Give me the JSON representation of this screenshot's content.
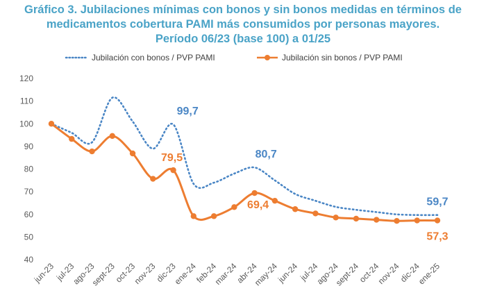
{
  "title_lines": [
    "Gráfico 3. Jubilaciones mínimas con bonos y sin bonos medidas en términos de",
    "medicamentos cobertura PAMI más consumidos por personas mayores.",
    "Período 06/23 (base 100) a 01/25"
  ],
  "chart_data": {
    "type": "line",
    "categories": [
      "jun-23",
      "jul-23",
      "ago-23",
      "sept-23",
      "oct-23",
      "nov-23",
      "dic-23",
      "ene-24",
      "feb-24",
      "mar-24",
      "abr-24",
      "may-24",
      "jun-24",
      "jul-24",
      "ago-24",
      "sept-24",
      "oct-24",
      "nov-24",
      "dic-24",
      "ene-25"
    ],
    "ylim": [
      40,
      120
    ],
    "yticks": [
      40,
      50,
      60,
      70,
      80,
      90,
      100,
      110,
      120
    ],
    "grid": false,
    "legend_position": "top",
    "series": [
      {
        "name": "Jubilación con bonos / PVP PAMI",
        "color": "#4a86c5",
        "style": "dotted",
        "values": [
          100,
          96,
          91.8,
          111.5,
          101,
          89,
          99.7,
          73.5,
          74,
          78,
          80.7,
          75,
          69,
          66,
          63.3,
          62,
          61,
          60,
          59.7,
          59.7
        ]
      },
      {
        "name": "Jubilación sin bonos / PVP PAMI",
        "color": "#ed7d31",
        "style": "solid",
        "values": [
          100,
          93.3,
          87.8,
          94.6,
          86.9,
          75.7,
          79.5,
          59.2,
          59.2,
          63.2,
          69.4,
          66,
          62.3,
          60.4,
          58.6,
          58.1,
          57.6,
          57.1,
          57.3,
          57.3
        ]
      }
    ],
    "annotations": [
      {
        "series": 0,
        "index": 6,
        "text": "99,7"
      },
      {
        "series": 0,
        "index": 10,
        "text": "80,7"
      },
      {
        "series": 0,
        "index": 19,
        "text": "59,7"
      },
      {
        "series": 1,
        "index": 6,
        "text": "79,5"
      },
      {
        "series": 1,
        "index": 10,
        "text": "69,4"
      },
      {
        "series": 1,
        "index": 19,
        "text": "57,3"
      }
    ]
  }
}
